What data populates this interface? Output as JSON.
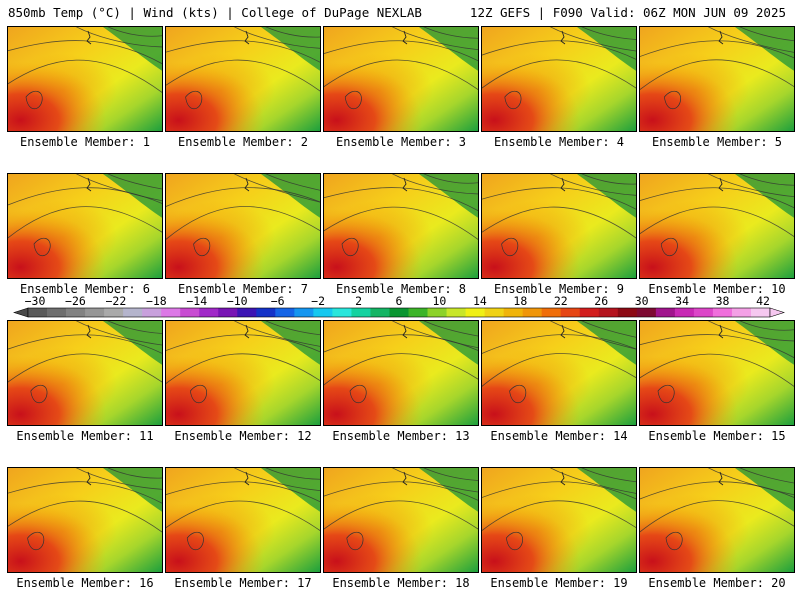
{
  "header": {
    "left": "850mb Temp (°C) | Wind (kts) | College of DuPage NEXLAB",
    "right": "12Z GEFS | F090 Valid: 06Z MON JUN 09 2025"
  },
  "panels": [
    {
      "label": "Ensemble Member: 1"
    },
    {
      "label": "Ensemble Member: 2"
    },
    {
      "label": "Ensemble Member: 3"
    },
    {
      "label": "Ensemble Member: 4"
    },
    {
      "label": "Ensemble Member: 5"
    },
    {
      "label": "Ensemble Member: 6"
    },
    {
      "label": "Ensemble Member: 7"
    },
    {
      "label": "Ensemble Member: 8"
    },
    {
      "label": "Ensemble Member: 9"
    },
    {
      "label": "Ensemble Member: 10"
    },
    {
      "label": "Ensemble Member: 11"
    },
    {
      "label": "Ensemble Member: 12"
    },
    {
      "label": "Ensemble Member: 13"
    },
    {
      "label": "Ensemble Member: 14"
    },
    {
      "label": "Ensemble Member: 15"
    },
    {
      "label": "Ensemble Member: 16"
    },
    {
      "label": "Ensemble Member: 17"
    },
    {
      "label": "Ensemble Member: 18"
    },
    {
      "label": "Ensemble Member: 19"
    },
    {
      "label": "Ensemble Member: 20"
    }
  ],
  "colorbar": {
    "ticks": [
      "−30",
      "−26",
      "−22",
      "−18",
      "−14",
      "−10",
      "−6",
      "−2",
      "2",
      "6",
      "10",
      "14",
      "18",
      "22",
      "26",
      "30",
      "34",
      "38",
      "42"
    ],
    "colors": [
      "#5a5a5a",
      "#6e6e6e",
      "#828282",
      "#969696",
      "#aaaaaa",
      "#b4b4cc",
      "#c8a0dc",
      "#dc78e6",
      "#c84bd2",
      "#a028c8",
      "#7814b4",
      "#3c14b4",
      "#1432c8",
      "#1464e6",
      "#1496f0",
      "#14c8f0",
      "#28e6dc",
      "#14d2a0",
      "#14b464",
      "#0a9632",
      "#3cb428",
      "#8cd228",
      "#c8e628",
      "#f0f014",
      "#f0d214",
      "#f0b40a",
      "#f0960a",
      "#f06e0a",
      "#e64614",
      "#d21e1e",
      "#b4141e",
      "#8c0a14",
      "#7d0a32",
      "#a0148c",
      "#c828b4",
      "#dc46c8",
      "#f06edc",
      "#f4a0e6",
      "#f6c8f0"
    ]
  }
}
